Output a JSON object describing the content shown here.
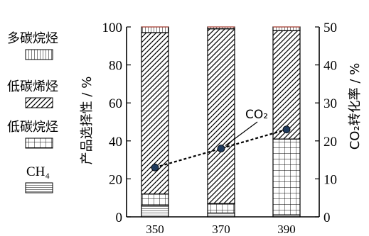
{
  "chart_data": {
    "type": "bar",
    "stacked": true,
    "categories": [
      "350",
      "370",
      "390"
    ],
    "xlabel": "",
    "ylabel": "产品选择性 / %",
    "y2label": "CO₂转化率 / %",
    "ylim": [
      0,
      100
    ],
    "y2lim": [
      0,
      50
    ],
    "yticks": [
      "0",
      "20",
      "40",
      "60",
      "80",
      "100"
    ],
    "y2ticks": [
      "0",
      "10",
      "20",
      "30",
      "40",
      "50"
    ],
    "series": [
      {
        "name": "CH₄",
        "values": [
          6,
          2,
          1
        ],
        "pattern": "horizontal-lines"
      },
      {
        "name": "低碳烷烃",
        "values": [
          6,
          5,
          40
        ],
        "pattern": "grid"
      },
      {
        "name": "低碳烯烃",
        "values": [
          85,
          92,
          57
        ],
        "pattern": "diagonal-hatch"
      },
      {
        "name": "多碳烷烃",
        "values": [
          3,
          1,
          2
        ],
        "pattern": "vertical-lines"
      }
    ],
    "conversion_series": {
      "name": "CO₂",
      "axis": "right",
      "values": [
        13,
        18,
        23
      ]
    },
    "legend_position": "left",
    "annotation": "CO₂",
    "colors": {
      "bar_outline": "#000000",
      "bar_fill": "#ffffff",
      "line": "#000000",
      "marker": "#1f3a5c",
      "top_line": "#c0392b"
    }
  }
}
